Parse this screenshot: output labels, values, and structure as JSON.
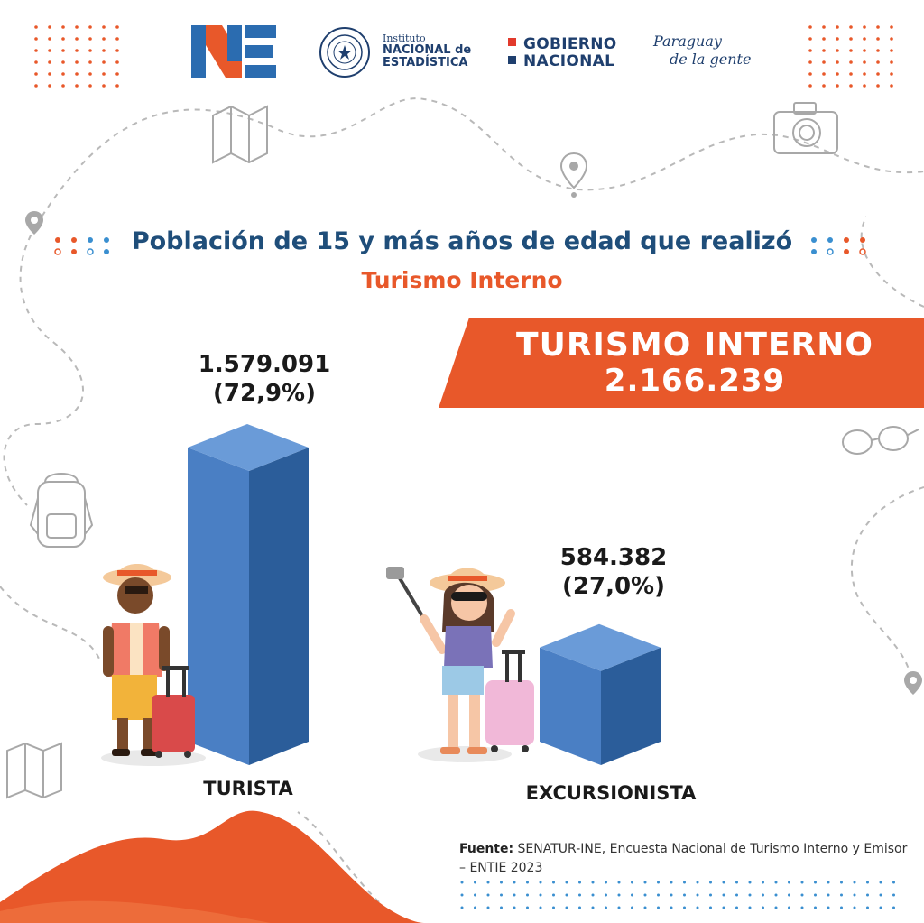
{
  "header": {
    "ine_logo_text": "NE",
    "institute_small": "Instituto",
    "institute_name_line1": "NACIONAL de",
    "institute_name_line2": "ESTADÍSTICA",
    "gobierno_line1": "GOBIERNO",
    "gobierno_line2": "NACIONAL",
    "slogan_line1": "Paraguay",
    "slogan_line2": "de la gente"
  },
  "chart_data": {
    "type": "bar",
    "title": "Población de 15 y más años de edad que realizó",
    "subtitle": "Turismo Interno",
    "categories": [
      "TURISTA",
      "EXCURSIONISTA"
    ],
    "values": [
      1579091,
      584382
    ],
    "value_labels": [
      "1.579.091",
      "584.382"
    ],
    "percent_labels": [
      "(72,9%)",
      "(27,0%)"
    ],
    "percentages": [
      72.9,
      27.0
    ],
    "total_label": "TURISMO INTERNO",
    "total_value": "2.166.239",
    "style": "3d-columns",
    "grid": false
  },
  "source": {
    "label": "Fuente:",
    "text": "SENATUR-INE, Encuesta Nacional de Turismo Interno y Emisor – ENTIE 2023"
  },
  "colors": {
    "navy": "#1f4e7a",
    "orange": "#e8582a",
    "bar_front": "#4a7fc4",
    "bar_side": "#2b5d9a",
    "bar_top": "#6a9bd8"
  },
  "icons": [
    "map-icon",
    "camera-icon",
    "location-pin-icon",
    "sunglasses-icon",
    "backpack-icon",
    "tourist-illustration",
    "excursionist-illustration"
  ]
}
